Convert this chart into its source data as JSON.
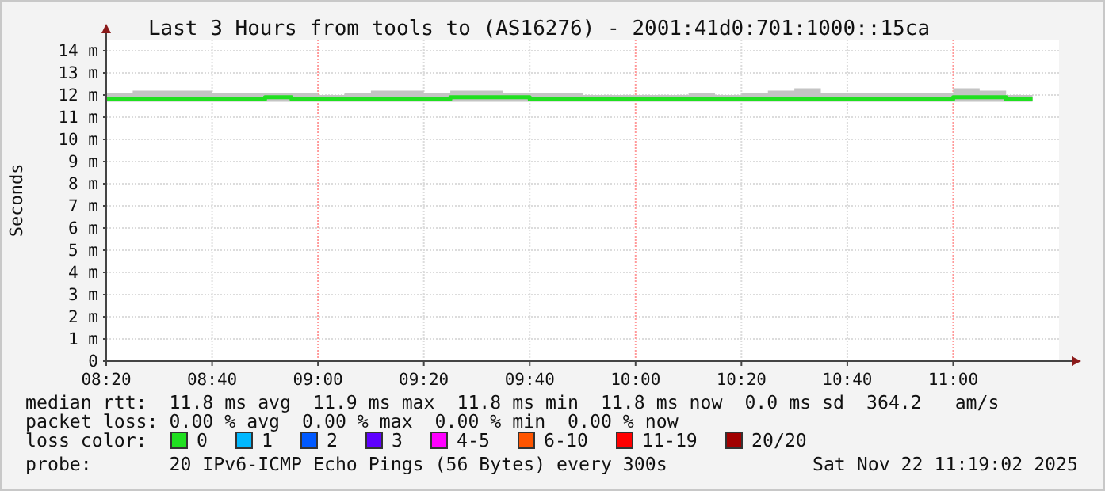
{
  "chart_data": {
    "type": "line",
    "title": "Last 3 Hours from tools to (AS16276) - 2001:41d0:701:1000::15ca",
    "ylabel": "Seconds",
    "x": [
      8.3333,
      8.4167,
      8.5,
      8.5833,
      8.6667,
      8.75,
      8.8333,
      8.9167,
      9,
      9.0833,
      9.1667,
      9.25,
      9.3333,
      9.4167,
      9.5,
      9.5833,
      9.6667,
      9.75,
      9.8333,
      9.9167,
      10,
      10.0833,
      10.1667,
      10.25,
      10.3333,
      10.4167,
      10.5,
      10.5833,
      10.6667,
      10.75,
      10.8333,
      10.9167,
      11,
      11.0833,
      11.1667,
      11.25
    ],
    "xlim": [
      8.3333,
      11.3333
    ],
    "xticks": [
      {
        "value": 8.3333,
        "label": "08:20"
      },
      {
        "value": 8.6667,
        "label": "08:40"
      },
      {
        "value": 9,
        "label": "09:00"
      },
      {
        "value": 9.3333,
        "label": "09:20"
      },
      {
        "value": 9.6667,
        "label": "09:40"
      },
      {
        "value": 10,
        "label": "10:00"
      },
      {
        "value": 10.3333,
        "label": "10:20"
      },
      {
        "value": 10.6667,
        "label": "10:40"
      },
      {
        "value": 11,
        "label": "11:00"
      }
    ],
    "ylim": [
      0,
      14.5
    ],
    "yticks": [
      0,
      {
        "value": 1,
        "label": "1 m"
      },
      {
        "value": 2,
        "label": "2 m"
      },
      {
        "value": 3,
        "label": "3 m"
      },
      {
        "value": 4,
        "label": "4 m"
      },
      {
        "value": 5,
        "label": "5 m"
      },
      {
        "value": 6,
        "label": "6 m"
      },
      {
        "value": 7,
        "label": "7 m"
      },
      {
        "value": 8,
        "label": "8 m"
      },
      {
        "value": 9,
        "label": "9 m"
      },
      {
        "value": 10,
        "label": "10 m"
      },
      {
        "value": 11,
        "label": "11 m"
      },
      {
        "value": 12,
        "label": "12 m"
      },
      {
        "value": 13,
        "label": "13 m"
      },
      {
        "value": 14,
        "label": "14 m"
      }
    ],
    "grid": true,
    "legend": "bottom",
    "legend_title": "loss color:",
    "series": [
      {
        "name": "0",
        "color": "#20e020",
        "values": [
          11.8,
          11.8,
          11.8,
          11.8,
          11.8,
          11.8,
          11.9,
          11.8,
          11.8,
          11.8,
          11.8,
          11.8,
          11.8,
          11.9,
          11.9,
          11.9,
          11.8,
          11.8,
          11.8,
          11.8,
          11.8,
          11.8,
          11.8,
          11.8,
          11.8,
          11.8,
          11.8,
          11.8,
          11.8,
          11.8,
          11.8,
          11.8,
          11.9,
          11.9,
          11.8,
          11.8
        ],
        "lower": [
          11.7,
          11.7,
          11.7,
          11.7,
          11.7,
          11.7,
          11.7,
          11.7,
          11.7,
          11.7,
          11.7,
          11.7,
          11.7,
          11.7,
          11.7,
          11.7,
          11.7,
          11.7,
          11.7,
          11.7,
          11.7,
          11.7,
          11.7,
          11.7,
          11.7,
          11.7,
          11.7,
          11.7,
          11.7,
          11.7,
          11.7,
          11.7,
          11.7,
          11.7,
          11.7,
          11.7
        ],
        "upper": [
          12.1,
          12.2,
          12.2,
          12.2,
          12.1,
          12.1,
          12.1,
          12.1,
          12.0,
          12.1,
          12.2,
          12.2,
          12.1,
          12.2,
          12.2,
          12.1,
          12.1,
          12.1,
          12.0,
          12.0,
          12.0,
          12.0,
          12.1,
          12.0,
          12.1,
          12.2,
          12.3,
          12.1,
          12.1,
          12.1,
          12.1,
          12.1,
          12.3,
          12.2,
          12.0,
          12.0
        ]
      },
      {
        "name": "1",
        "color": "#00b8ff",
        "values": [
          null,
          null,
          null,
          null,
          null,
          null,
          null,
          null,
          null,
          null,
          null,
          null,
          null,
          null,
          null,
          null,
          null,
          null,
          null,
          null,
          null,
          null,
          null,
          null,
          null,
          null,
          null,
          null,
          null,
          null,
          null,
          null,
          null,
          null,
          null,
          null
        ]
      },
      {
        "name": "2",
        "color": "#0059ff",
        "values": [
          null,
          null,
          null,
          null,
          null,
          null,
          null,
          null,
          null,
          null,
          null,
          null,
          null,
          null,
          null,
          null,
          null,
          null,
          null,
          null,
          null,
          null,
          null,
          null,
          null,
          null,
          null,
          null,
          null,
          null,
          null,
          null,
          null,
          null,
          null,
          null
        ]
      },
      {
        "name": "3",
        "color": "#5e00ff",
        "values": [
          null,
          null,
          null,
          null,
          null,
          null,
          null,
          null,
          null,
          null,
          null,
          null,
          null,
          null,
          null,
          null,
          null,
          null,
          null,
          null,
          null,
          null,
          null,
          null,
          null,
          null,
          null,
          null,
          null,
          null,
          null,
          null,
          null,
          null,
          null,
          null
        ]
      },
      {
        "name": "4-5",
        "color": "#ff00ff",
        "values": [
          null,
          null,
          null,
          null,
          null,
          null,
          null,
          null,
          null,
          null,
          null,
          null,
          null,
          null,
          null,
          null,
          null,
          null,
          null,
          null,
          null,
          null,
          null,
          null,
          null,
          null,
          null,
          null,
          null,
          null,
          null,
          null,
          null,
          null,
          null,
          null
        ]
      },
      {
        "name": "6-10",
        "color": "#ff5500",
        "values": [
          null,
          null,
          null,
          null,
          null,
          null,
          null,
          null,
          null,
          null,
          null,
          null,
          null,
          null,
          null,
          null,
          null,
          null,
          null,
          null,
          null,
          null,
          null,
          null,
          null,
          null,
          null,
          null,
          null,
          null,
          null,
          null,
          null,
          null,
          null,
          null
        ]
      },
      {
        "name": "11-19",
        "color": "#ff0000",
        "values": [
          null,
          null,
          null,
          null,
          null,
          null,
          null,
          null,
          null,
          null,
          null,
          null,
          null,
          null,
          null,
          null,
          null,
          null,
          null,
          null,
          null,
          null,
          null,
          null,
          null,
          null,
          null,
          null,
          null,
          null,
          null,
          null,
          null,
          null,
          null,
          null
        ]
      },
      {
        "name": "20/20",
        "color": "#a10000",
        "values": [
          null,
          null,
          null,
          null,
          null,
          null,
          null,
          null,
          null,
          null,
          null,
          null,
          null,
          null,
          null,
          null,
          null,
          null,
          null,
          null,
          null,
          null,
          null,
          null,
          null,
          null,
          null,
          null,
          null,
          null,
          null,
          null,
          null,
          null,
          null,
          null
        ]
      }
    ],
    "annotations": [
      "median rtt:  11.8 ms avg  11.9 ms max  11.8 ms min  11.8 ms now  0.0 ms sd  364.2   am/s",
      "packet loss: 0.00 % avg  0.00 % max  0.00 % min  0.00 % now",
      "probe:       20 IPv6-ICMP Echo Pings (56 Bytes) every 300s",
      "Sat Nov 22 11:19:02 2025"
    ]
  }
}
